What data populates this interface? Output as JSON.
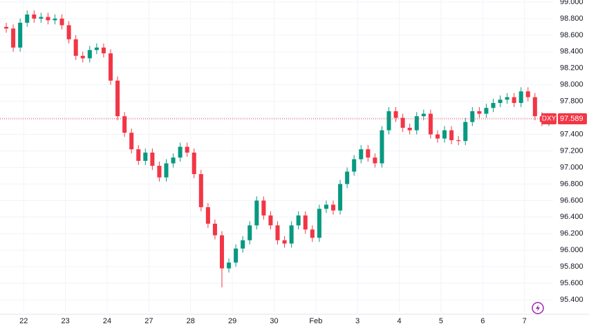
{
  "chart_data": {
    "type": "candlestick",
    "symbol": "DXY",
    "last_price": 97.589,
    "up_color": "#089981",
    "down_color": "#f23645",
    "grid": true,
    "ylim": [
      95.25,
      99.025
    ],
    "yticks": [
      {
        "value": 95.4,
        "label": "95.400"
      },
      {
        "value": 95.6,
        "label": "95.600"
      },
      {
        "value": 95.8,
        "label": "95.800"
      },
      {
        "value": 96,
        "label": "96.000"
      },
      {
        "value": 96.2,
        "label": "96.200"
      },
      {
        "value": 96.4,
        "label": "96.400"
      },
      {
        "value": 96.6,
        "label": "96.600"
      },
      {
        "value": 96.8,
        "label": "96.800"
      },
      {
        "value": 97,
        "label": "97.000"
      },
      {
        "value": 97.2,
        "label": "97.200"
      },
      {
        "value": 97.4,
        "label": "97.400"
      },
      {
        "value": 97.6,
        "label": "97.600"
      },
      {
        "value": 97.8,
        "label": "97.800"
      },
      {
        "value": 98,
        "label": "98.000"
      },
      {
        "value": 98.2,
        "label": "98.200"
      },
      {
        "value": 98.4,
        "label": "98.400"
      },
      {
        "value": 98.6,
        "label": "98.600"
      },
      {
        "value": 98.8,
        "label": "98.800"
      },
      {
        "value": 99,
        "label": "99.000"
      }
    ],
    "xlim": [
      -0.9,
      78.6
    ],
    "xticks": [
      {
        "value": 2.5,
        "label": "22"
      },
      {
        "value": 8.5,
        "label": "23"
      },
      {
        "value": 14.5,
        "label": "24"
      },
      {
        "value": 20.5,
        "label": "27"
      },
      {
        "value": 26.5,
        "label": "28"
      },
      {
        "value": 32.5,
        "label": "29"
      },
      {
        "value": 38.5,
        "label": "30"
      },
      {
        "value": 44.5,
        "label": "Feb"
      },
      {
        "value": 50.5,
        "label": "3"
      },
      {
        "value": 56.5,
        "label": "4"
      },
      {
        "value": 62.5,
        "label": "5"
      },
      {
        "value": 68.5,
        "label": "6"
      },
      {
        "value": 74.5,
        "label": "7"
      }
    ],
    "open": [
      98.7,
      98.68,
      98.45,
      98.75,
      98.85,
      98.8,
      98.82,
      98.78,
      98.8,
      98.72,
      98.55,
      98.35,
      98.32,
      98.42,
      98.45,
      98.38,
      98.05,
      97.62,
      97.42,
      97.22,
      97.08,
      97.18,
      97.02,
      96.88,
      97.05,
      97.12,
      97.25,
      97.18,
      96.92,
      96.52,
      96.32,
      96.18,
      95.78,
      95.85,
      96.02,
      96.12,
      96.3,
      96.6,
      96.42,
      96.3,
      96.12,
      96.08,
      96.3,
      96.42,
      96.25,
      96.15,
      96.5,
      96.55,
      96.48,
      96.8,
      96.95,
      97.1,
      97.22,
      97.12,
      97.05,
      97.45,
      97.68,
      97.6,
      97.48,
      97.45,
      97.62,
      97.65,
      97.4,
      97.35,
      97.45,
      97.33,
      97.32,
      97.55,
      97.68,
      97.65,
      97.72,
      97.78,
      97.82,
      97.85,
      97.78,
      97.92,
      97.85,
      97.62,
      97.55
    ],
    "high": [
      98.75,
      98.73,
      98.8,
      98.9,
      98.9,
      98.87,
      98.87,
      98.85,
      98.85,
      98.77,
      98.6,
      98.4,
      98.47,
      98.5,
      98.5,
      98.43,
      98.1,
      97.67,
      97.47,
      97.27,
      97.23,
      97.23,
      97.07,
      97.1,
      97.17,
      97.3,
      97.3,
      97.23,
      96.97,
      96.57,
      96.37,
      96.23,
      95.9,
      96.07,
      96.17,
      96.35,
      96.65,
      96.65,
      96.47,
      96.35,
      96.17,
      96.35,
      96.47,
      96.47,
      96.3,
      96.55,
      96.6,
      96.6,
      96.85,
      97.0,
      97.15,
      97.27,
      97.27,
      97.17,
      97.5,
      97.73,
      97.73,
      97.65,
      97.53,
      97.67,
      97.7,
      97.7,
      97.45,
      97.5,
      97.5,
      97.38,
      97.6,
      97.73,
      97.73,
      97.77,
      97.83,
      97.87,
      97.9,
      97.9,
      97.97,
      97.97,
      97.9,
      97.67,
      97.64
    ],
    "low": [
      98.63,
      98.4,
      98.4,
      98.7,
      98.75,
      98.75,
      98.73,
      98.73,
      98.67,
      98.5,
      98.3,
      98.27,
      98.27,
      98.37,
      98.33,
      98.0,
      97.57,
      97.37,
      97.17,
      97.03,
      97.03,
      96.97,
      96.83,
      96.83,
      97.0,
      97.07,
      97.13,
      96.87,
      96.47,
      96.27,
      96.13,
      95.55,
      95.73,
      95.8,
      95.97,
      96.07,
      96.25,
      96.37,
      96.25,
      96.07,
      96.03,
      96.03,
      96.25,
      96.2,
      96.1,
      96.1,
      96.45,
      96.43,
      96.43,
      96.75,
      96.9,
      97.05,
      97.07,
      97.0,
      97.0,
      97.4,
      97.55,
      97.43,
      97.4,
      97.4,
      97.57,
      97.35,
      97.3,
      97.3,
      97.28,
      97.27,
      97.27,
      97.5,
      97.6,
      97.6,
      97.67,
      97.73,
      97.77,
      97.73,
      97.73,
      97.8,
      97.57,
      97.5,
      97.5
    ],
    "close": [
      98.68,
      98.45,
      98.75,
      98.85,
      98.8,
      98.82,
      98.78,
      98.8,
      98.72,
      98.55,
      98.35,
      98.32,
      98.42,
      98.45,
      98.38,
      98.05,
      97.62,
      97.42,
      97.22,
      97.08,
      97.18,
      97.02,
      96.88,
      97.05,
      97.12,
      97.25,
      97.18,
      96.92,
      96.52,
      96.32,
      96.18,
      95.78,
      95.85,
      96.02,
      96.12,
      96.3,
      96.6,
      96.42,
      96.3,
      96.12,
      96.08,
      96.3,
      96.42,
      96.25,
      96.15,
      96.5,
      96.55,
      96.48,
      96.8,
      96.95,
      97.1,
      97.22,
      97.12,
      97.05,
      97.45,
      97.68,
      97.6,
      97.48,
      97.45,
      97.62,
      97.65,
      97.4,
      97.35,
      97.45,
      97.33,
      97.32,
      97.55,
      97.68,
      97.65,
      97.72,
      97.78,
      97.82,
      97.85,
      97.78,
      97.92,
      97.85,
      97.62,
      97.55,
      97.59
    ]
  }
}
